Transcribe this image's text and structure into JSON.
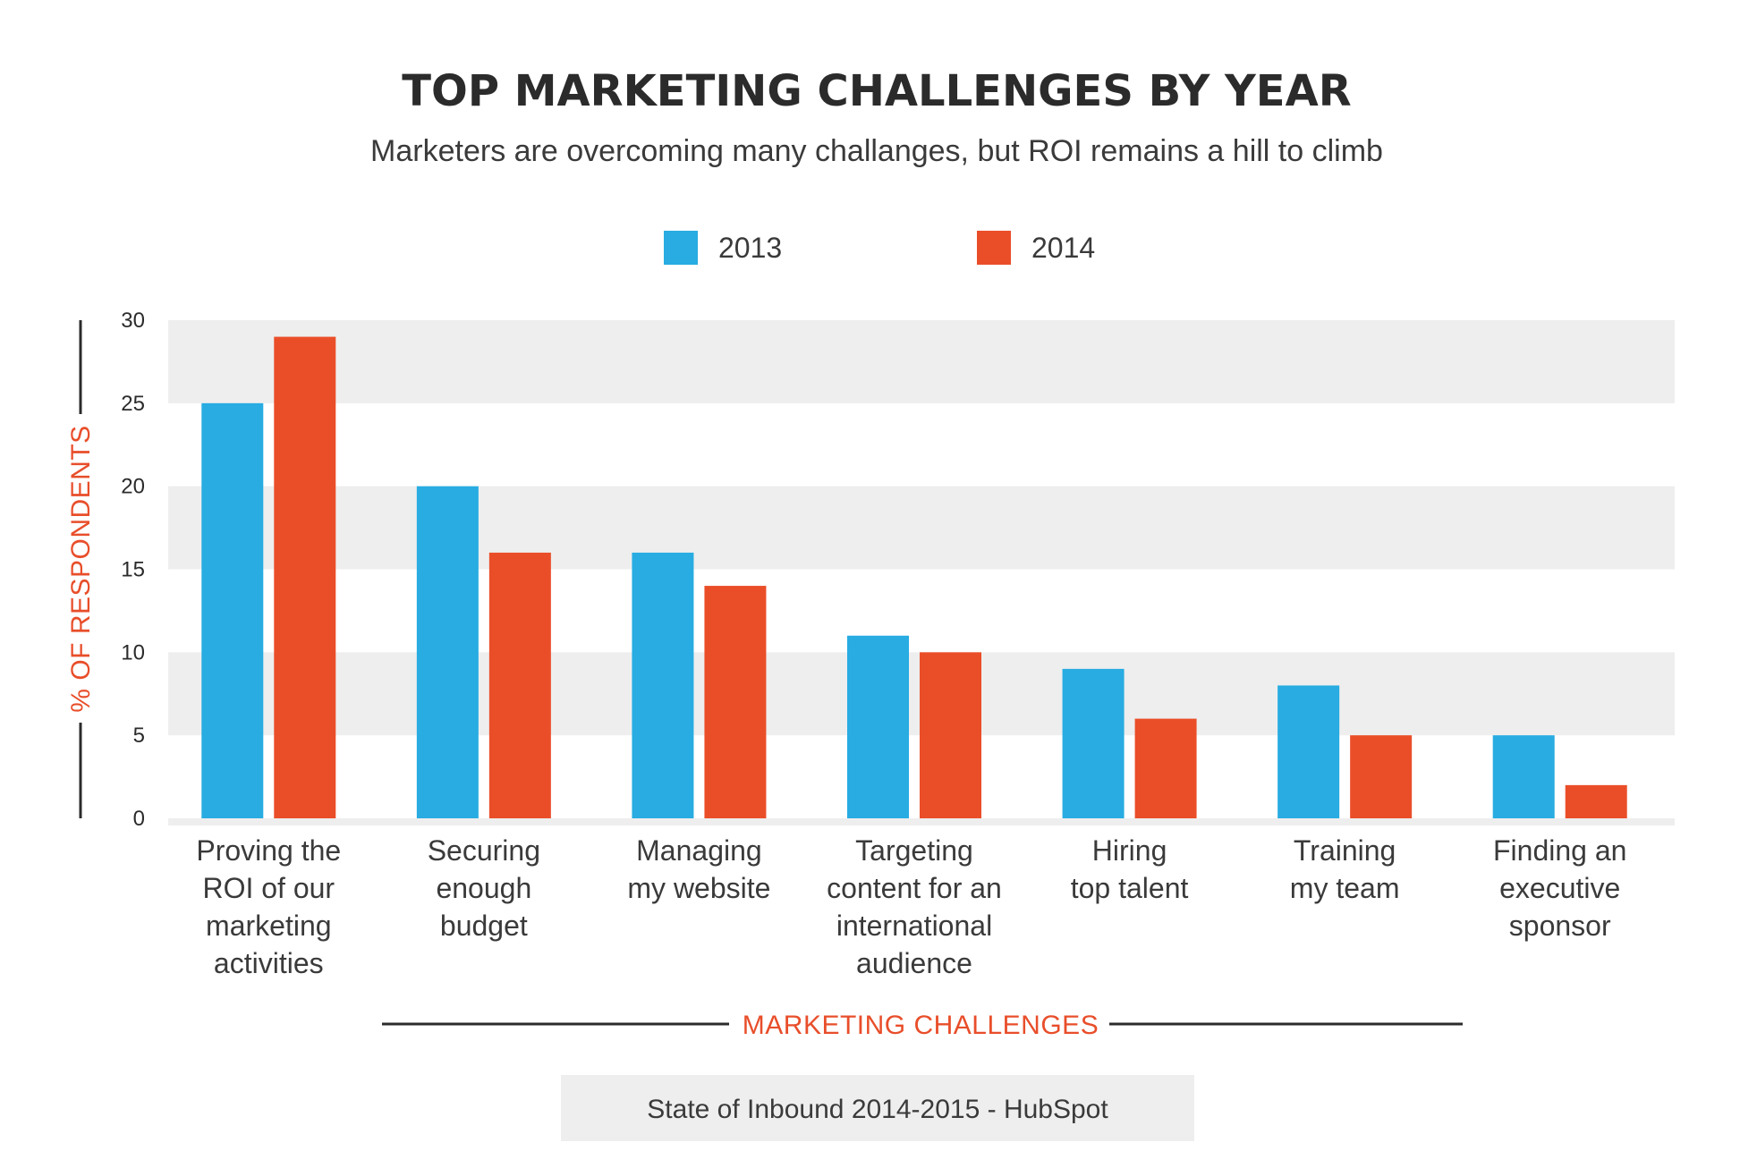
{
  "colors": {
    "series2013": "#28ace2",
    "series2014": "#ea4e29",
    "band": "#eeeeee",
    "accent": "#e84e2a"
  },
  "chart_data": {
    "type": "bar",
    "title": "TOP MARKETING CHALLENGES BY YEAR",
    "subtitle": "Marketers are overcoming many challanges, but ROI remains a hill to climb",
    "xlabel": "MARKETING CHALLENGES",
    "ylabel": "% OF RESPONDENTS",
    "ylim": [
      0,
      30
    ],
    "yticks": [
      "0",
      "5",
      "10",
      "15",
      "20",
      "25",
      "30"
    ],
    "grid": "alternating bands",
    "legend": "top-center",
    "categories": [
      [
        "Proving the",
        "ROI of our",
        "marketing",
        "activities"
      ],
      [
        "Securing",
        "enough",
        "budget"
      ],
      [
        "Managing",
        "my website"
      ],
      [
        "Targeting",
        "content for an",
        "international",
        "audience"
      ],
      [
        "Hiring",
        "top talent"
      ],
      [
        "Training",
        "my team"
      ],
      [
        "Finding an",
        "executive",
        "sponsor"
      ]
    ],
    "series": [
      {
        "name": "2013",
        "values": [
          25,
          20,
          16,
          11,
          9,
          8,
          5
        ]
      },
      {
        "name": "2014",
        "values": [
          29,
          16,
          14,
          10,
          6,
          5,
          2
        ]
      }
    ],
    "source": "State of Inbound 2014-2015 - HubSpot"
  }
}
